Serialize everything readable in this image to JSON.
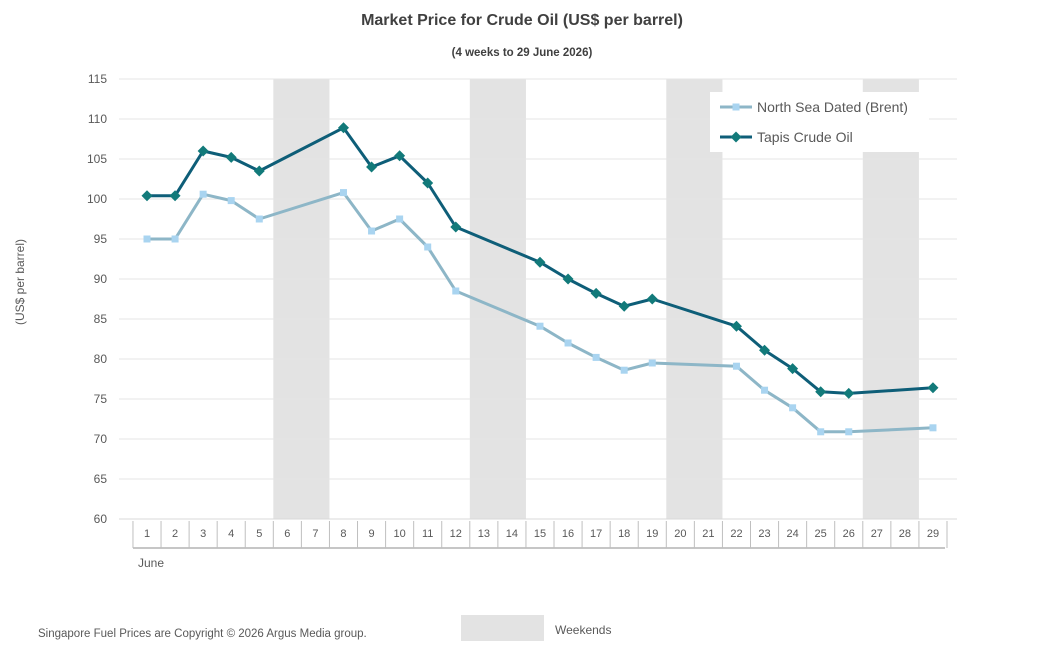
{
  "chart_data": {
    "type": "line",
    "title": "Market Price for Crude Oil (US$ per barrel)",
    "subtitle": "(4 weeks to 29 June 2026)",
    "ylabel": "(US$ per barrel)",
    "xlabel": "",
    "month_label": "June",
    "ylim": [
      60,
      115
    ],
    "yticks": [
      60,
      65,
      70,
      75,
      80,
      85,
      90,
      95,
      100,
      105,
      110,
      115
    ],
    "categories": [
      "1",
      "2",
      "3",
      "4",
      "5",
      "6",
      "7",
      "8",
      "9",
      "10",
      "11",
      "12",
      "13",
      "14",
      "15",
      "16",
      "17",
      "18",
      "19",
      "20",
      "21",
      "22",
      "23",
      "24",
      "25",
      "26",
      "27",
      "28",
      "29"
    ],
    "weekends": [
      [
        "6",
        "7"
      ],
      [
        "13",
        "14"
      ],
      [
        "20",
        "21"
      ],
      [
        "27",
        "28"
      ]
    ],
    "series": [
      {
        "name": "North Sea Dated (Brent)",
        "color": "#8db6c7",
        "marker_color": "#a9d4f0",
        "marker": "square",
        "points": [
          [
            "1",
            95.0
          ],
          [
            "2",
            95.0
          ],
          [
            "3",
            100.6
          ],
          [
            "4",
            99.8
          ],
          [
            "5",
            97.5
          ],
          [
            "8",
            100.8
          ],
          [
            "9",
            96.0
          ],
          [
            "10",
            97.5
          ],
          [
            "11",
            94.0
          ],
          [
            "12",
            88.5
          ],
          [
            "15",
            84.1
          ],
          [
            "16",
            82.0
          ],
          [
            "17",
            80.2
          ],
          [
            "18",
            78.6
          ],
          [
            "19",
            79.5
          ],
          [
            "22",
            79.1
          ],
          [
            "23",
            76.1
          ],
          [
            "24",
            73.9
          ],
          [
            "25",
            70.9
          ],
          [
            "26",
            70.9
          ],
          [
            "29",
            71.4
          ]
        ]
      },
      {
        "name": "Tapis Crude Oil",
        "color": "#0e5e78",
        "marker_color": "#127a7a",
        "marker": "diamond",
        "points": [
          [
            "1",
            100.4
          ],
          [
            "2",
            100.4
          ],
          [
            "3",
            106.0
          ],
          [
            "4",
            105.2
          ],
          [
            "5",
            103.5
          ],
          [
            "8",
            108.9
          ],
          [
            "9",
            104.0
          ],
          [
            "10",
            105.4
          ],
          [
            "11",
            102.0
          ],
          [
            "12",
            96.5
          ],
          [
            "15",
            92.1
          ],
          [
            "16",
            90.0
          ],
          [
            "17",
            88.2
          ],
          [
            "18",
            86.6
          ],
          [
            "19",
            87.5
          ],
          [
            "22",
            84.1
          ],
          [
            "23",
            81.1
          ],
          [
            "24",
            78.8
          ],
          [
            "25",
            75.9
          ],
          [
            "26",
            75.7
          ],
          [
            "29",
            76.4
          ]
        ]
      }
    ],
    "legend_position": "top-right",
    "grid": true
  },
  "footer": {
    "copyright": "Singapore Fuel Prices are Copyright © 2026 Argus Media group.",
    "weekends_label": "Weekends"
  },
  "colors": {
    "weekend_shade": "#e3e3e3",
    "gridline": "#e6e6e6",
    "axis": "#8c8c8c"
  }
}
